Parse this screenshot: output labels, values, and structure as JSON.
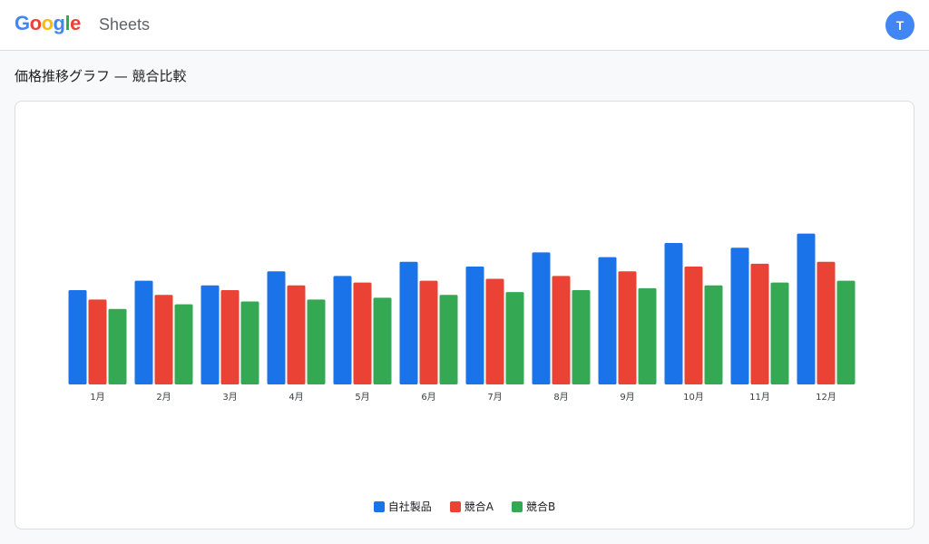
{
  "header": {
    "logo_letters": [
      {
        "char": "G",
        "color": "#4285F4"
      },
      {
        "char": "o",
        "color": "#EA4335"
      },
      {
        "char": "o",
        "color": "#FBBC05"
      },
      {
        "char": "g",
        "color": "#4285F4"
      },
      {
        "char": "l",
        "color": "#34A853"
      },
      {
        "char": "e",
        "color": "#EA4335"
      }
    ],
    "app_name": "Sheets",
    "avatar_initial": "T",
    "avatar_color": "#4285F4"
  },
  "page": {
    "title": "価格推移グラフ — 競合比較"
  },
  "chart_data": {
    "type": "bar",
    "categories": [
      "1月",
      "2月",
      "3月",
      "4月",
      "5月",
      "6月",
      "7月",
      "8月",
      "9月",
      "10月",
      "11月",
      "12月"
    ],
    "series": [
      {
        "name": "自社製品",
        "color": "#1a73e8",
        "values": [
          100,
          110,
          105,
          120,
          115,
          130,
          125,
          140,
          135,
          150,
          145,
          160
        ]
      },
      {
        "name": "競合A",
        "color": "#ea4335",
        "values": [
          90,
          95,
          100,
          105,
          108,
          110,
          112,
          115,
          120,
          125,
          128,
          130
        ]
      },
      {
        "name": "競合B",
        "color": "#34a853",
        "values": [
          80,
          85,
          88,
          90,
          92,
          95,
          98,
          100,
          102,
          105,
          108,
          110
        ]
      }
    ],
    "title": "",
    "xlabel": "",
    "ylabel": "",
    "ylim": [
      0,
      300
    ],
    "grid": false,
    "legend_position": "bottom"
  }
}
